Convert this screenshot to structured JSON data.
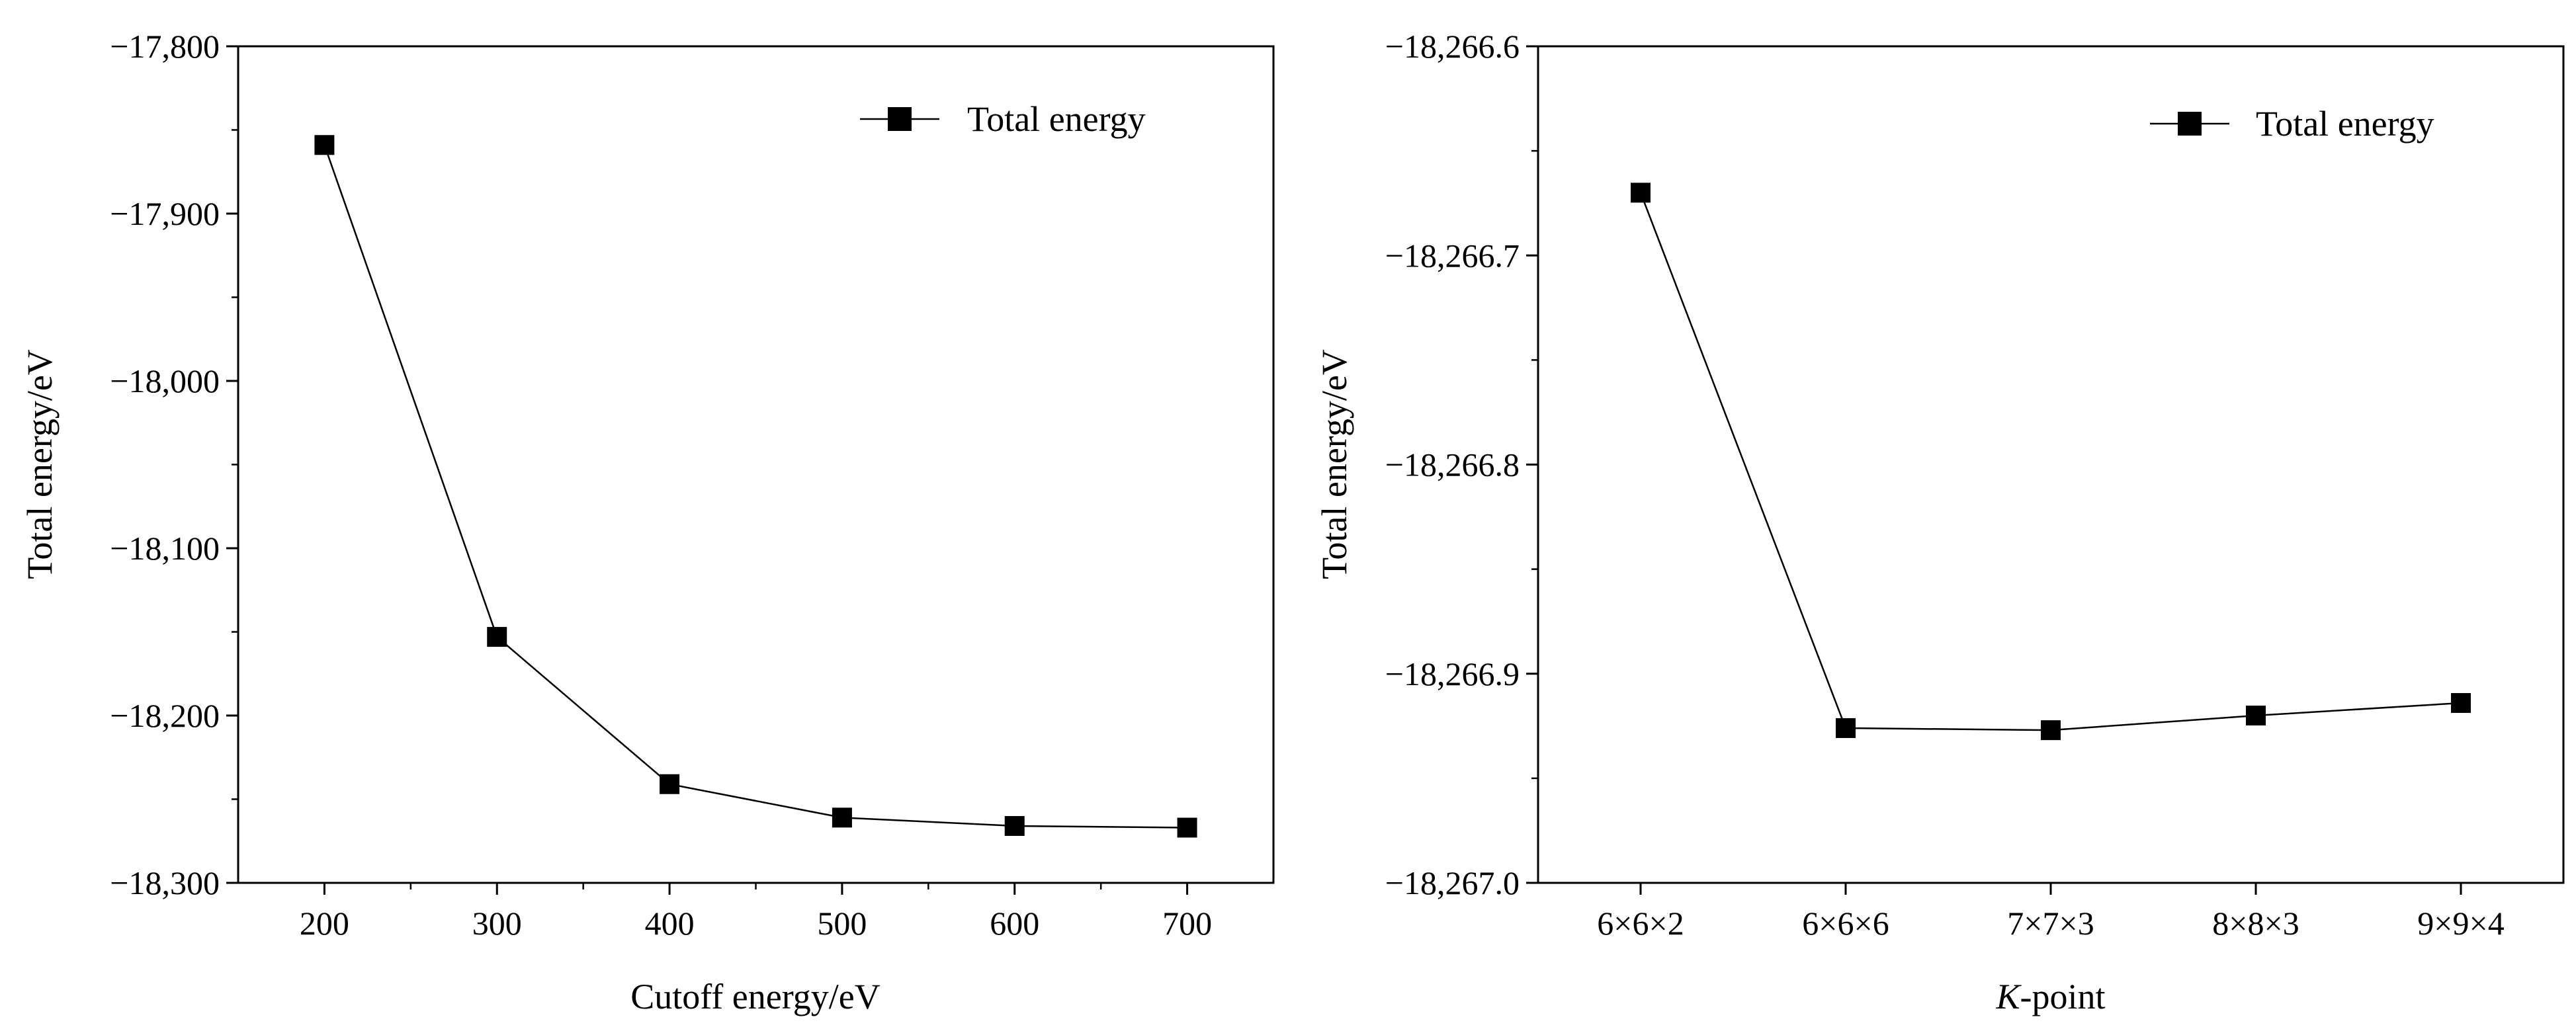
{
  "chart_data": [
    {
      "type": "line",
      "title": "",
      "xlabel": "Cutoff energy/eV",
      "ylabel": "Total energy/eV",
      "x": [
        200,
        300,
        400,
        500,
        600,
        700
      ],
      "series": [
        {
          "name": "Total energy",
          "marker": "square",
          "color": "#000000",
          "values": [
            -17859,
            -18153,
            -18241,
            -18261,
            -18266,
            -18267
          ]
        }
      ],
      "xlim": [
        150,
        750
      ],
      "ylim": [
        -18300,
        -17800
      ],
      "xticks": [
        "200",
        "300",
        "400",
        "500",
        "600",
        "700"
      ],
      "yticks": [
        "−17,800",
        "−17,900",
        "−18,000",
        "−18,100",
        "−18,200",
        "−18,300"
      ],
      "legend": "top-right",
      "grid": false
    },
    {
      "type": "line",
      "title": "",
      "xlabel_italic": "K",
      "xlabel": "-point",
      "ylabel": "Total energy/eV",
      "categories": [
        "6×6×2",
        "6×6×6",
        "7×7×3",
        "8×8×3",
        "9×9×4"
      ],
      "series": [
        {
          "name": "Total energy",
          "marker": "square",
          "color": "#000000",
          "values": [
            -18266.67,
            -18266.926,
            -18266.927,
            -18266.92,
            -18266.914
          ]
        }
      ],
      "ylim": [
        -18267.0,
        -18266.6
      ],
      "yticks": [
        "−18,266.6",
        "−18,266.7",
        "−18,266.8",
        "−18,266.9",
        "−18,267.0"
      ],
      "legend": "top-right",
      "grid": false
    }
  ]
}
